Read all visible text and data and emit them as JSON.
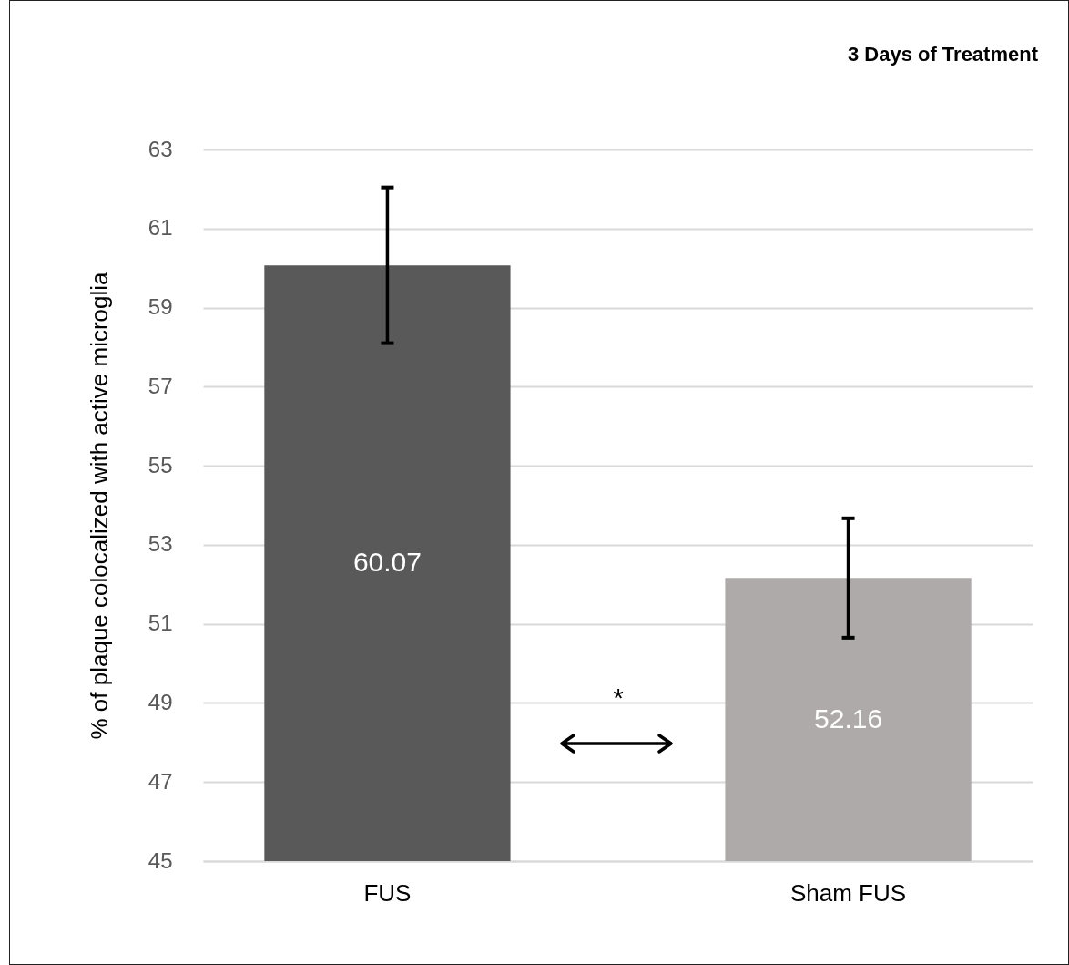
{
  "chart_data": {
    "type": "bar",
    "title": "3 Days of Treatment",
    "ylabel": "% of plaque colocalized with active microglia",
    "categories": [
      "FUS",
      "Sham FUS"
    ],
    "values": [
      60.07,
      52.16
    ],
    "colors": [
      "#595959",
      "#aeaaaa"
    ],
    "errors": [
      1.97,
      1.51
    ],
    "ylim": [
      45,
      63
    ],
    "yticks": [
      45,
      47,
      49,
      51,
      53,
      55,
      57,
      59,
      61,
      63
    ],
    "grid": "y",
    "data_labels": true,
    "annotations": [
      "*"
    ]
  }
}
